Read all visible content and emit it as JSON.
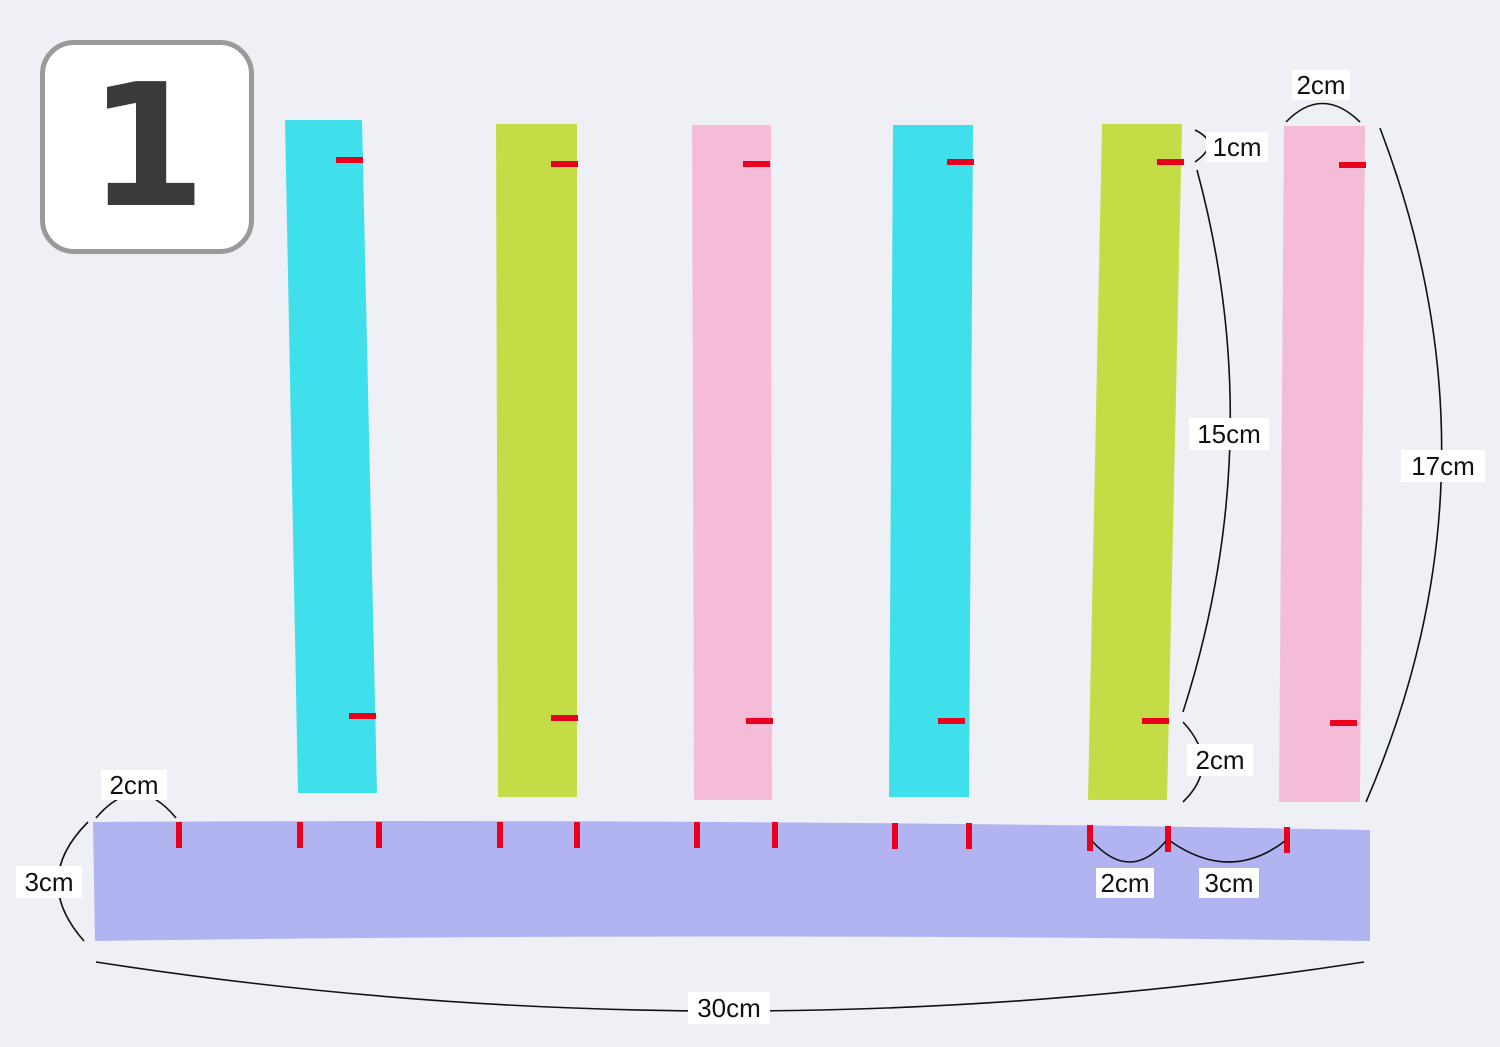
{
  "step_number": "1",
  "colors": {
    "background": "#eef0f5",
    "strip_cyan": "#3fe0ec",
    "strip_green": "#c4dd47",
    "strip_pink": "#f5bcd8",
    "base_band": "#b1b4f1",
    "cut_mark": "#e8001c",
    "dimension_line": "#111111"
  },
  "strips": [
    {
      "color_name": "cyan"
    },
    {
      "color_name": "green"
    },
    {
      "color_name": "pink"
    },
    {
      "color_name": "cyan"
    },
    {
      "color_name": "green"
    },
    {
      "color_name": "pink"
    }
  ],
  "base_band": {
    "color_name": "lavender"
  },
  "dimensions": {
    "strip_width": "2cm",
    "strip_top_margin": "1cm",
    "strip_middle": "15cm",
    "strip_bottom_margin": "2cm",
    "strip_length": "17cm",
    "band_left_margin": "2cm",
    "band_height": "3cm",
    "band_gap_small": "2cm",
    "band_gap_large": "3cm",
    "band_length": "30cm"
  }
}
